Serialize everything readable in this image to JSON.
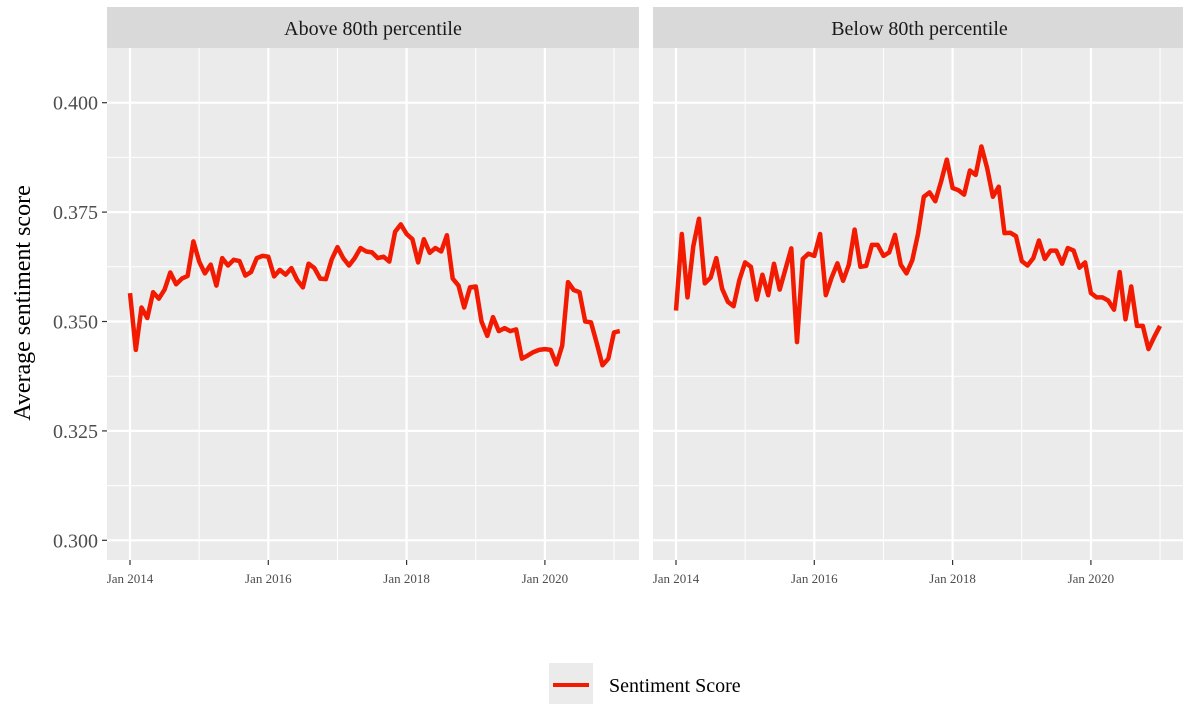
{
  "chart_data": {
    "type": "line",
    "facets": [
      {
        "strip_label": "Above 80th percentile",
        "series": [
          {
            "name": "Sentiment Score",
            "values": [
              0.3565,
              0.3435,
              0.3532,
              0.3508,
              0.3567,
              0.3552,
              0.3573,
              0.3612,
              0.3585,
              0.3598,
              0.3604,
              0.3683,
              0.3637,
              0.361,
              0.363,
              0.3582,
              0.3645,
              0.3628,
              0.3641,
              0.3638,
              0.3605,
              0.3613,
              0.3645,
              0.365,
              0.3648,
              0.3603,
              0.3618,
              0.3607,
              0.3622,
              0.3595,
              0.3578,
              0.3632,
              0.3622,
              0.3598,
              0.3597,
              0.3642,
              0.367,
              0.3645,
              0.3628,
              0.3645,
              0.3668,
              0.366,
              0.3658,
              0.3645,
              0.3648,
              0.3637,
              0.3705,
              0.3722,
              0.37,
              0.3688,
              0.3635,
              0.3688,
              0.3657,
              0.3668,
              0.366,
              0.3697,
              0.3598,
              0.3582,
              0.3532,
              0.3578,
              0.358,
              0.35,
              0.3467,
              0.351,
              0.3478,
              0.3485,
              0.3478,
              0.3482,
              0.3415,
              0.3422,
              0.343,
              0.3435,
              0.3437,
              0.3435,
              0.3402,
              0.3445,
              0.359,
              0.3572,
              0.3567,
              0.35,
              0.3498,
              0.345,
              0.34,
              0.3415,
              0.3475,
              0.3478
            ]
          }
        ]
      },
      {
        "strip_label": "Below 80th percentile",
        "series": [
          {
            "name": "Sentiment Score",
            "values": [
              0.3525,
              0.37,
              0.3555,
              0.3672,
              0.3735,
              0.3587,
              0.36,
              0.3645,
              0.3575,
              0.3545,
              0.3535,
              0.3595,
              0.3635,
              0.3625,
              0.355,
              0.3607,
              0.356,
              0.3632,
              0.3573,
              0.362,
              0.3667,
              0.3453,
              0.3643,
              0.3655,
              0.365,
              0.37,
              0.356,
              0.36,
              0.3633,
              0.3593,
              0.363,
              0.371,
              0.3625,
              0.3627,
              0.3675,
              0.3675,
              0.365,
              0.3658,
              0.3698,
              0.363,
              0.361,
              0.364,
              0.37,
              0.3785,
              0.3795,
              0.3775,
              0.382,
              0.387,
              0.3805,
              0.38,
              0.379,
              0.3845,
              0.3835,
              0.39,
              0.385,
              0.3785,
              0.3808,
              0.3702,
              0.3703,
              0.3695,
              0.3638,
              0.3628,
              0.3645,
              0.3685,
              0.3643,
              0.3662,
              0.3662,
              0.3632,
              0.3668,
              0.3662,
              0.3623,
              0.3635,
              0.3565,
              0.3555,
              0.3555,
              0.3548,
              0.3527,
              0.3613,
              0.3505,
              0.358,
              0.349,
              0.349,
              0.3437,
              0.3465,
              0.349
            ]
          }
        ]
      }
    ],
    "x_start": "Jan 2014",
    "x_interval": "monthly",
    "xticks": [
      "Jan 2014",
      "Jan 2016",
      "Jan 2018",
      "Jan 2020"
    ],
    "ylabel": "Average sentiment score",
    "yticks": [
      "0.300",
      "0.325",
      "0.350",
      "0.375",
      "0.400"
    ],
    "ylim": [
      0.2955,
      0.4125
    ],
    "grid": true,
    "legend": {
      "placement": "bottom",
      "entries": [
        "Sentiment Score"
      ]
    },
    "colors": {
      "line": "#f21a00",
      "panel_background": "#ebebeb",
      "strip_background": "#d9d9d9",
      "grid": "#ffffff"
    }
  }
}
